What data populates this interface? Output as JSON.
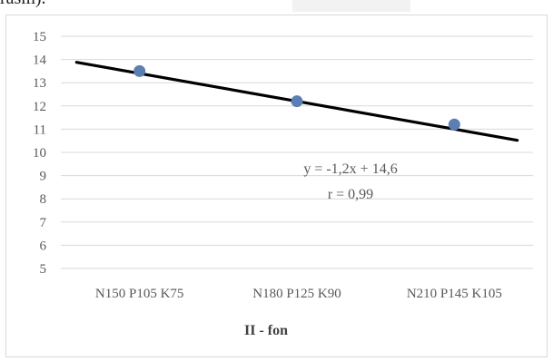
{
  "header": {
    "cut_text": "rasm)."
  },
  "chart_data": {
    "type": "scatter",
    "categories": [
      "N150 P105 K75",
      "N180 P125 K90",
      "N210 P145 K105"
    ],
    "x": [
      1,
      2,
      3
    ],
    "values": [
      13.5,
      12.2,
      11.2
    ],
    "trendline": {
      "type": "linear",
      "slope": -1.2,
      "intercept": 14.6,
      "x_range": [
        0.6,
        3.4
      ]
    },
    "annotations": [
      "y = -1,2x + 14,6",
      "r = 0,99"
    ],
    "xlabel": "II - fon",
    "ylabel": "",
    "ylim": [
      5,
      15
    ],
    "yticks": [
      5,
      6,
      7,
      8,
      9,
      10,
      11,
      12,
      13,
      14,
      15
    ],
    "grid": true,
    "colors": {
      "marker": "#5b7fb3",
      "trendline": "#000000",
      "grid": "#d9d9d9",
      "text": "#595959"
    }
  }
}
